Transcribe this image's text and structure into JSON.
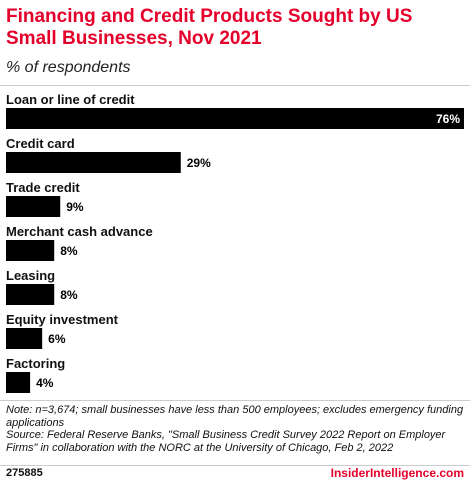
{
  "header": {
    "title": "Financing and Credit Products Sought by US Small Businesses, Nov 2021",
    "subtitle": "% of respondents"
  },
  "chart_data": {
    "type": "bar",
    "orientation": "horizontal",
    "categories": [
      "Loan or line of credit",
      "Credit card",
      "Trade credit",
      "Merchant cash advance",
      "Leasing",
      "Equity investment",
      "Factoring"
    ],
    "values": [
      76,
      29,
      9,
      8,
      8,
      6,
      4
    ],
    "value_labels": [
      "76%",
      "29%",
      "9%",
      "8%",
      "8%",
      "6%",
      "4%"
    ],
    "unit": "%",
    "xlim": [
      0,
      76
    ],
    "grid": false,
    "legend": "none",
    "bar_color": "#000000"
  },
  "notes": {
    "note": "Note: n=3,674; small businesses have less than 500 employees; excludes emergency funding applications",
    "source": "Source: Federal Reserve Banks, \"Small Business Credit Survey 2022 Report on Employer Firms\" in collaboration with the NORC at the University of Chicago, Feb 2, 2022"
  },
  "footer": {
    "chart_id": "275885",
    "brand": "InsiderIntelligence.com"
  },
  "colors": {
    "title": "#e4002b",
    "bar": "#000000",
    "brand": "#e4002b"
  }
}
